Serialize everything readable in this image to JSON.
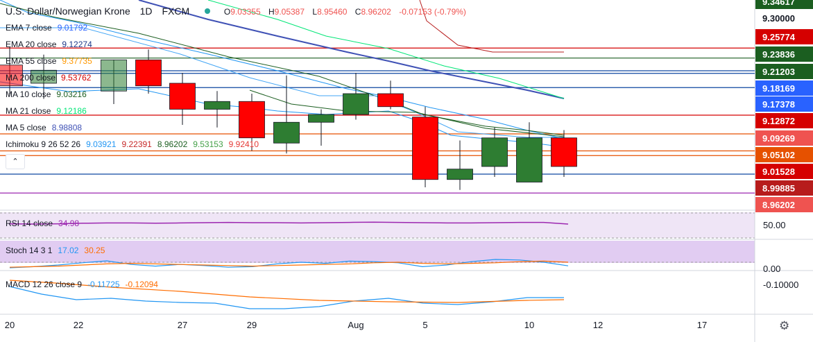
{
  "header": {
    "symbol": "U.S. Dollar/Norwegian Krone",
    "timeframe": "1D",
    "exchange": "FXCM",
    "open_label": "O",
    "open": "9.03355",
    "high_label": "H",
    "high": "9.05387",
    "low_label": "L",
    "low": "8.95460",
    "close_label": "C",
    "close": "8.96202",
    "change": "-0.07153 (-0.79%)"
  },
  "indicators": [
    {
      "name": "EMA 7 close",
      "values": [
        "9.01792"
      ],
      "colors": [
        "#2962ff"
      ]
    },
    {
      "name": "EMA 20 close",
      "values": [
        "9.12274"
      ],
      "colors": [
        "#1e3a8a"
      ]
    },
    {
      "name": "EMA 55 close",
      "values": [
        "9.37735"
      ],
      "colors": [
        "#ff9800"
      ]
    },
    {
      "name": "MA 200 close",
      "values": [
        "9.53762"
      ],
      "colors": [
        "#d50000"
      ]
    },
    {
      "name": "MA 10 close",
      "values": [
        "9.03216"
      ],
      "colors": [
        "#1b5e20"
      ]
    },
    {
      "name": "MA 21 close",
      "values": [
        "9.12186"
      ],
      "colors": [
        "#00e676"
      ]
    },
    {
      "name": "MA 5 close",
      "values": [
        "8.98808"
      ],
      "colors": [
        "#3f51b5"
      ]
    },
    {
      "name": "Ichimoku 9 26 52 26",
      "values": [
        "9.03921",
        "9.22391",
        "8.96202",
        "9.53153",
        "9.92410"
      ],
      "colors": [
        "#2196f3",
        "#c62828",
        "#1b5e20",
        "#43a047",
        "#e53935"
      ]
    }
  ],
  "price_labels": [
    {
      "value": "9.34617",
      "color": "#1b5e20"
    },
    {
      "value": "9.30000",
      "color": ""
    },
    {
      "value": "9.25774",
      "color": "#d50000"
    },
    {
      "value": "9.23836",
      "color": "#1b5e20"
    },
    {
      "value": "9.21203",
      "color": "#1b5e20"
    },
    {
      "value": "9.18169",
      "color": "#2962ff"
    },
    {
      "value": "9.17378",
      "color": "#2962ff"
    },
    {
      "value": "9.12872",
      "color": "#d50000"
    },
    {
      "value": "9.09269",
      "color": "#ef5350"
    },
    {
      "value": "9.05102",
      "color": "#e65100"
    },
    {
      "value": "9.01528",
      "color": "#d50000"
    },
    {
      "value": "8.99885",
      "color": "#b71c1c"
    },
    {
      "value": "8.96202",
      "color": "#ef5350"
    }
  ],
  "x_ticks": [
    "20",
    "22",
    "27",
    "29",
    "Aug",
    "5",
    "10",
    "12",
    "17"
  ],
  "rsi": {
    "name": "RSI 14 close",
    "value": "34.98",
    "axis_label": "50.00",
    "values": [
      36,
      35,
      36,
      38,
      39,
      39,
      38,
      39,
      40,
      41,
      40,
      40,
      39,
      40,
      41,
      42,
      41,
      40,
      39,
      39,
      40,
      41,
      41,
      35
    ]
  },
  "stoch": {
    "name": "Stoch 14 3 1",
    "k": "17.02",
    "d": "30.25",
    "axis_label": "0.00",
    "k_values": [
      10,
      14,
      20,
      28,
      35,
      22,
      16,
      22,
      18,
      12,
      14,
      24,
      30,
      26,
      34,
      32,
      28,
      14,
      20,
      32,
      40,
      38,
      30,
      17
    ],
    "d_values": [
      12,
      14,
      16,
      20,
      24,
      26,
      24,
      22,
      20,
      18,
      16,
      18,
      20,
      22,
      24,
      28,
      30,
      26,
      24,
      26,
      28,
      32,
      34,
      30
    ]
  },
  "macd": {
    "name": "MACD 12 26 close 9",
    "macd_value": "-0.11725",
    "signal_value": "-0.12094",
    "axis_label": "-0.10000"
  },
  "chart_data": {
    "type": "candlestick",
    "title": "U.S. Dollar/Norwegian Krone 1D FXCM",
    "x_labels": [
      "20",
      "22",
      "27",
      "29",
      "Aug",
      "5",
      "10",
      "12",
      "17"
    ],
    "ylim": [
      8.95,
      9.35
    ],
    "candles": [
      {
        "o": 9.185,
        "h": 9.26,
        "l": 9.165,
        "c": 9.225,
        "color": "red"
      },
      {
        "o": 9.19,
        "h": 9.245,
        "l": 9.16,
        "c": 9.215,
        "color": "green"
      },
      {
        "o": 9.175,
        "h": 9.235,
        "l": 9.15,
        "c": 9.235,
        "color": "green"
      },
      {
        "o": 9.235,
        "h": 9.255,
        "l": 9.17,
        "c": 9.185,
        "color": "red"
      },
      {
        "o": 9.19,
        "h": 9.21,
        "l": 9.11,
        "c": 9.14,
        "color": "red"
      },
      {
        "o": 9.14,
        "h": 9.175,
        "l": 9.105,
        "c": 9.155,
        "color": "green"
      },
      {
        "o": 9.155,
        "h": 9.17,
        "l": 9.06,
        "c": 9.085,
        "color": "red"
      },
      {
        "o": 9.075,
        "h": 9.205,
        "l": 9.055,
        "c": 9.115,
        "color": "green"
      },
      {
        "o": 9.115,
        "h": 9.14,
        "l": 9.07,
        "c": 9.13,
        "color": "green"
      },
      {
        "o": 9.13,
        "h": 9.21,
        "l": 9.12,
        "c": 9.17,
        "color": "green"
      },
      {
        "o": 9.17,
        "h": 9.195,
        "l": 9.14,
        "c": 9.145,
        "color": "red"
      },
      {
        "o": 9.125,
        "h": 9.145,
        "l": 8.99,
        "c": 9.005,
        "color": "red"
      },
      {
        "o": 9.005,
        "h": 9.08,
        "l": 8.985,
        "c": 9.025,
        "color": "green"
      },
      {
        "o": 9.03,
        "h": 9.105,
        "l": 9.01,
        "c": 9.085,
        "color": "green"
      },
      {
        "o": 9.085,
        "h": 9.115,
        "l": 9.0,
        "c": 9.0,
        "color": "green"
      },
      {
        "o": 9.085,
        "h": 9.1,
        "l": 9.01,
        "c": 9.03,
        "color": "red"
      }
    ],
    "horizontal_levels": [
      {
        "y": 9.2577,
        "color": "#d50000"
      },
      {
        "y": 9.2384,
        "color": "#1b5e20"
      },
      {
        "y": 9.214,
        "color": "#0d47a1"
      },
      {
        "y": 9.209,
        "color": "#0d47a1"
      },
      {
        "y": 9.1817,
        "color": "#0d47a1"
      },
      {
        "y": 9.1287,
        "color": "#d50000"
      },
      {
        "y": 9.0927,
        "color": "#e65100"
      },
      {
        "y": 9.06,
        "color": "#e65100"
      },
      {
        "y": 9.051,
        "color": "#e65100"
      },
      {
        "y": 9.0153,
        "color": "#0d47a1"
      },
      {
        "y": 8.979,
        "color": "#9c27b0"
      }
    ]
  }
}
